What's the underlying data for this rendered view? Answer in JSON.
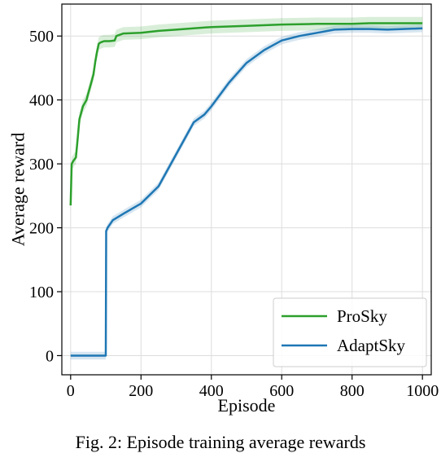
{
  "chart_data": {
    "type": "line",
    "xlabel": "Episode",
    "ylabel": "Average reward",
    "xlim": [
      -25,
      1025
    ],
    "ylim": [
      -30,
      550
    ],
    "xticks": [
      0,
      200,
      400,
      600,
      800,
      1000
    ],
    "yticks": [
      0,
      100,
      200,
      300,
      400,
      500
    ],
    "grid": true,
    "legend_position": "bottom-right",
    "series": [
      {
        "name": "ProSky",
        "color": "#2ca02c",
        "x": [
          0,
          3,
          8,
          15,
          20,
          25,
          30,
          35,
          40,
          45,
          50,
          55,
          60,
          65,
          70,
          75,
          80,
          85,
          90,
          95,
          100,
          110,
          125,
          130,
          150,
          200,
          250,
          300,
          350,
          400,
          500,
          600,
          700,
          800,
          850,
          900,
          1000
        ],
        "values": [
          235,
          300,
          305,
          310,
          340,
          370,
          380,
          390,
          395,
          400,
          410,
          420,
          430,
          440,
          460,
          475,
          488,
          490,
          491,
          492,
          492,
          492,
          493,
          500,
          504,
          505,
          508,
          510,
          512,
          514,
          516,
          518,
          519,
          519,
          520,
          520,
          520
        ],
        "band": 10
      },
      {
        "name": "AdaptSky",
        "color": "#1f77b4",
        "x": [
          0,
          100,
          101,
          105,
          120,
          150,
          200,
          250,
          300,
          350,
          380,
          400,
          450,
          500,
          550,
          600,
          650,
          700,
          750,
          800,
          850,
          900,
          1000
        ],
        "values": [
          0,
          0,
          195,
          200,
          212,
          222,
          238,
          265,
          315,
          365,
          377,
          390,
          427,
          458,
          478,
          493,
          500,
          505,
          510,
          511,
          511,
          510,
          512
        ],
        "band": 6
      }
    ]
  },
  "caption": "Fig. 2: Episode training average rewards"
}
